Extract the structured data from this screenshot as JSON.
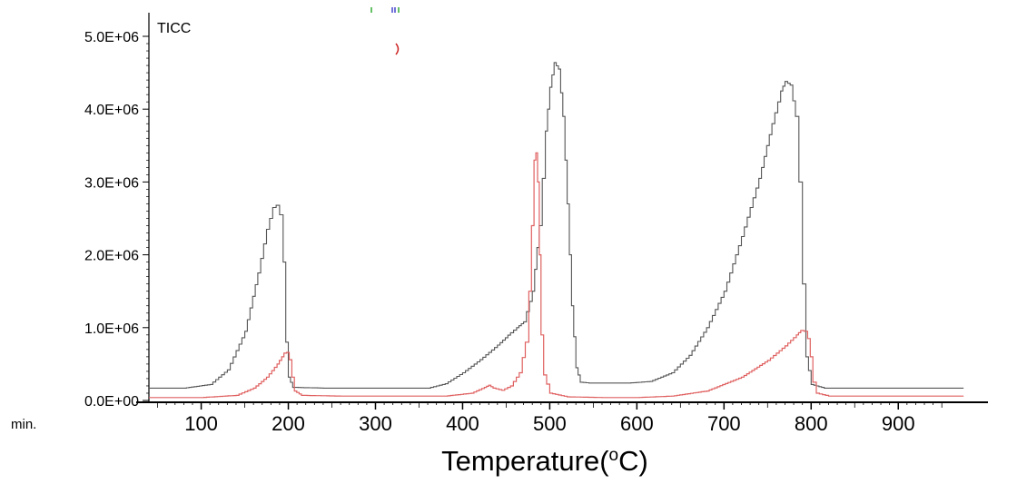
{
  "chart_data": {
    "type": "line",
    "title": "TICC",
    "xlabel_main": "Temperature(",
    "xlabel_sup": "o",
    "xlabel_end": "C)",
    "x_unit_label": "min.",
    "xlim": [
      40,
      980
    ],
    "ylim": [
      0,
      5000000
    ],
    "x_ticks": [
      100,
      200,
      300,
      400,
      500,
      600,
      700,
      800,
      900
    ],
    "x_tick_labels": [
      "100",
      "200",
      "300",
      "400",
      "500",
      "600",
      "700",
      "800",
      "900"
    ],
    "y_ticks": [
      0,
      1000000,
      2000000,
      3000000,
      4000000,
      5000000
    ],
    "y_tick_labels": [
      "0.0E+00",
      "1.0E+06",
      "2.0E+06",
      "3.0E+06",
      "4.0E+06",
      "5.0E+06"
    ],
    "series": [
      {
        "color": "#555555",
        "points": [
          [
            40,
            170000
          ],
          [
            80,
            170000
          ],
          [
            110,
            220000
          ],
          [
            130,
            420000
          ],
          [
            150,
            950000
          ],
          [
            165,
            1750000
          ],
          [
            175,
            2350000
          ],
          [
            182,
            2650000
          ],
          [
            186,
            2680000
          ],
          [
            190,
            2550000
          ],
          [
            194,
            1900000
          ],
          [
            197,
            800000
          ],
          [
            200,
            320000
          ],
          [
            205,
            180000
          ],
          [
            240,
            170000
          ],
          [
            300,
            170000
          ],
          [
            360,
            170000
          ],
          [
            380,
            230000
          ],
          [
            400,
            380000
          ],
          [
            420,
            560000
          ],
          [
            440,
            760000
          ],
          [
            455,
            930000
          ],
          [
            462,
            1000000
          ],
          [
            470,
            1080000
          ],
          [
            480,
            1500000
          ],
          [
            488,
            2400000
          ],
          [
            495,
            3700000
          ],
          [
            500,
            4300000
          ],
          [
            505,
            4640000
          ],
          [
            510,
            4550000
          ],
          [
            515,
            3900000
          ],
          [
            520,
            2700000
          ],
          [
            525,
            1300000
          ],
          [
            530,
            450000
          ],
          [
            535,
            250000
          ],
          [
            545,
            240000
          ],
          [
            590,
            240000
          ],
          [
            615,
            260000
          ],
          [
            640,
            380000
          ],
          [
            660,
            620000
          ],
          [
            680,
            1000000
          ],
          [
            700,
            1500000
          ],
          [
            720,
            2250000
          ],
          [
            740,
            3050000
          ],
          [
            755,
            3800000
          ],
          [
            765,
            4250000
          ],
          [
            770,
            4380000
          ],
          [
            776,
            4330000
          ],
          [
            782,
            3900000
          ],
          [
            786,
            3000000
          ],
          [
            790,
            1600000
          ],
          [
            794,
            600000
          ],
          [
            800,
            220000
          ],
          [
            815,
            170000
          ],
          [
            900,
            170000
          ],
          [
            975,
            170000
          ]
        ]
      },
      {
        "color": "#e06060",
        "points": [
          [
            40,
            40000
          ],
          [
            100,
            40000
          ],
          [
            140,
            70000
          ],
          [
            160,
            170000
          ],
          [
            175,
            320000
          ],
          [
            187,
            500000
          ],
          [
            195,
            650000
          ],
          [
            198,
            660000
          ],
          [
            201,
            560000
          ],
          [
            204,
            320000
          ],
          [
            207,
            130000
          ],
          [
            215,
            70000
          ],
          [
            260,
            60000
          ],
          [
            320,
            60000
          ],
          [
            380,
            60000
          ],
          [
            410,
            100000
          ],
          [
            425,
            180000
          ],
          [
            430,
            210000
          ],
          [
            435,
            170000
          ],
          [
            445,
            140000
          ],
          [
            455,
            200000
          ],
          [
            465,
            380000
          ],
          [
            472,
            800000
          ],
          [
            476,
            1500000
          ],
          [
            479,
            2400000
          ],
          [
            482,
            3300000
          ],
          [
            484,
            3400000
          ],
          [
            486,
            3000000
          ],
          [
            488,
            2000000
          ],
          [
            490,
            900000
          ],
          [
            493,
            350000
          ],
          [
            500,
            100000
          ],
          [
            520,
            50000
          ],
          [
            560,
            40000
          ],
          [
            600,
            40000
          ],
          [
            640,
            60000
          ],
          [
            680,
            130000
          ],
          [
            720,
            320000
          ],
          [
            750,
            550000
          ],
          [
            770,
            750000
          ],
          [
            783,
            900000
          ],
          [
            788,
            960000
          ],
          [
            792,
            950000
          ],
          [
            796,
            850000
          ],
          [
            799,
            600000
          ],
          [
            802,
            250000
          ],
          [
            806,
            100000
          ],
          [
            820,
            60000
          ],
          [
            900,
            60000
          ],
          [
            975,
            60000
          ]
        ]
      }
    ]
  }
}
